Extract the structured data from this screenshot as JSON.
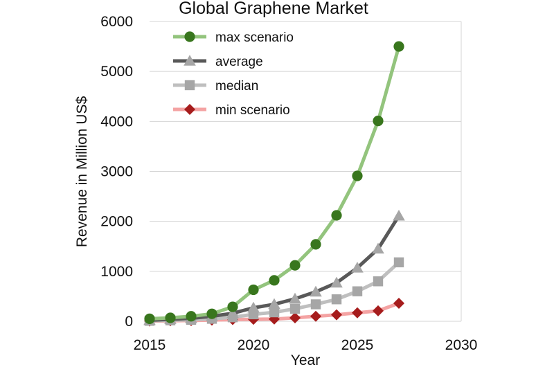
{
  "chart_data": {
    "type": "line",
    "title": "Global Graphene Market",
    "xlabel": "Year",
    "ylabel": "Revenue in Million US$",
    "xlim": [
      2015,
      2030
    ],
    "ylim": [
      0,
      6000
    ],
    "x_ticks": [
      2015,
      2020,
      2025,
      2030
    ],
    "y_ticks": [
      0,
      1000,
      2000,
      3000,
      4000,
      5000,
      6000
    ],
    "grid": "horizontal",
    "legend_position": "top-left",
    "x": [
      2015,
      2016,
      2017,
      2018,
      2019,
      2020,
      2021,
      2022,
      2023,
      2024,
      2025,
      2026,
      2027
    ],
    "series": [
      {
        "name": "max scenario",
        "color": "#93c47d",
        "marker_color": "#38761d",
        "marker": "circle",
        "values": [
          50,
          70,
          100,
          150,
          290,
          630,
          820,
          1120,
          1540,
          2120,
          2910,
          4010,
          5500
        ]
      },
      {
        "name": "average",
        "color": "#595959",
        "marker_color": "#a6a6a6",
        "marker": "triangle",
        "values": [
          20,
          40,
          60,
          100,
          160,
          270,
          340,
          450,
          590,
          770,
          1070,
          1450,
          2110
        ]
      },
      {
        "name": "median",
        "color": "#bfbfbf",
        "marker_color": "#a6a6a6",
        "marker": "square",
        "values": [
          10,
          20,
          30,
          50,
          80,
          140,
          180,
          250,
          340,
          440,
          600,
          800,
          1180
        ]
      },
      {
        "name": "min scenario",
        "color": "#f4a3a3",
        "marker_color": "#a61c1c",
        "marker": "diamond",
        "values": [
          5,
          10,
          15,
          25,
          35,
          40,
          45,
          70,
          100,
          130,
          170,
          210,
          360
        ]
      }
    ]
  }
}
